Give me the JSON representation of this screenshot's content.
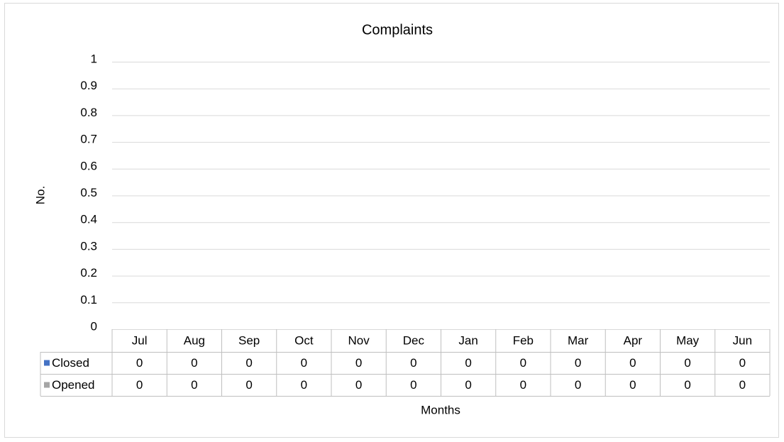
{
  "chart_data": {
    "type": "bar",
    "title": "Complaints",
    "x_label": "Months",
    "y_label": "No.",
    "categories": [
      "Jul",
      "Aug",
      "Sep",
      "Oct",
      "Nov",
      "Dec",
      "Jan",
      "Feb",
      "Mar",
      "Apr",
      "May",
      "Jun"
    ],
    "series": [
      {
        "name": "Closed",
        "color": "#4472c4",
        "values": [
          0,
          0,
          0,
          0,
          0,
          0,
          0,
          0,
          0,
          0,
          0,
          0
        ]
      },
      {
        "name": "Opened",
        "color": "#a5a5a5",
        "values": [
          0,
          0,
          0,
          0,
          0,
          0,
          0,
          0,
          0,
          0,
          0,
          0
        ]
      }
    ],
    "ylim": [
      0,
      1
    ],
    "yticks": [
      0,
      0.1,
      0.2,
      0.3,
      0.4,
      0.5,
      0.6,
      0.7,
      0.8,
      0.9,
      1
    ],
    "grid": true,
    "data_table": true
  }
}
